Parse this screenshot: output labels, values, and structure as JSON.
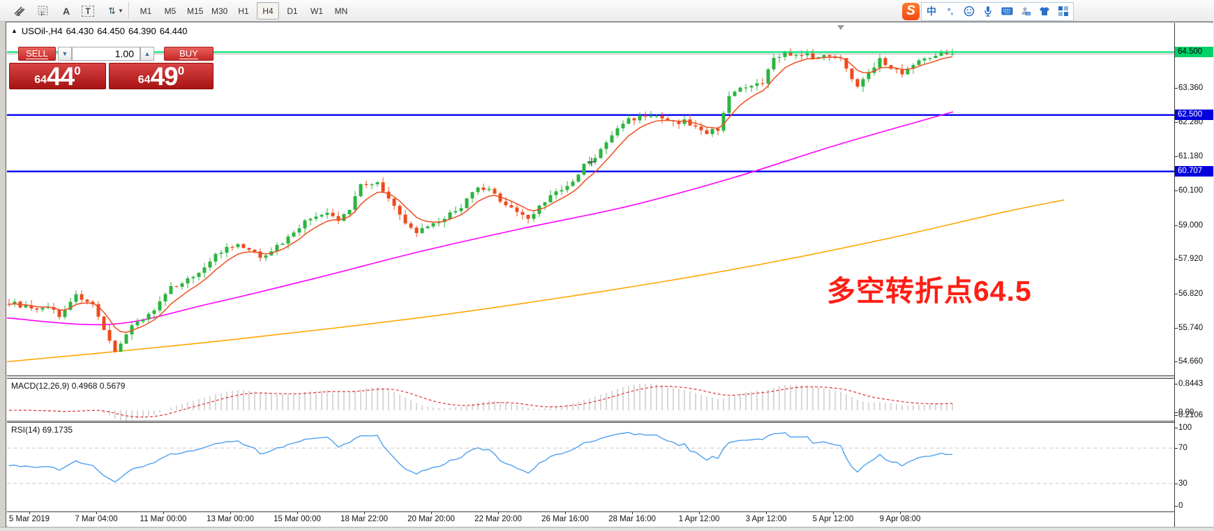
{
  "toolbar": {
    "tools": [
      {
        "name": "crayon-icon",
        "glyph": "E"
      },
      {
        "name": "grid-icon",
        "glyph": "F"
      },
      {
        "name": "text-label-icon",
        "glyph": "A"
      },
      {
        "name": "text-box-icon",
        "glyph": "T"
      },
      {
        "name": "arrange-icon",
        "glyph": "⇅"
      }
    ],
    "timeframes": [
      "M1",
      "M5",
      "M15",
      "M30",
      "H1",
      "H4",
      "D1",
      "W1",
      "MN"
    ],
    "active_timeframe": "H4",
    "ime": {
      "logo": "S",
      "chinese_mode": "中",
      "punctuation": "°,",
      "icons": [
        "emoji-icon",
        "microphone-icon",
        "keyboard-icon",
        "account-icon",
        "skin-icon",
        "toolbox-icon"
      ]
    }
  },
  "chart": {
    "title": {
      "expander": "▲",
      "symbol": "USOil-,H4",
      "open": "64.430",
      "high": "64.450",
      "low": "64.390",
      "close": "64.440"
    },
    "trade_panel": {
      "sell_label": "SELL",
      "buy_label": "BUY",
      "volume": "1.00",
      "spin_down": "▼",
      "spin_up": "▲",
      "sell_price": {
        "prefix": "64",
        "big": "44",
        "sup": "0"
      },
      "buy_price": {
        "prefix": "64",
        "big": "49",
        "sup": "0"
      }
    },
    "annotation": {
      "text": "多空转折点64.5",
      "color": "#ff1e14"
    }
  },
  "macd": {
    "label": "MACD(12,26,9)",
    "values": "0.4968 0.5679",
    "axis": [
      "0.8443",
      "0.00",
      "0.2106"
    ]
  },
  "rsi": {
    "label": "RSI(14)",
    "value": "69.1735"
  },
  "time_axis": [
    "5 Mar 2019",
    "7 Mar 04:00",
    "11 Mar 00:00",
    "13 Mar 00:00",
    "15 Mar 00:00",
    "18 Mar 22:00",
    "20 Mar 20:00",
    "22 Mar 20:00",
    "26 Mar 16:00",
    "28 Mar 16:00",
    "1 Apr 12:00",
    "3 Apr 12:00",
    "5 Apr 12:00",
    "9 Apr 08:00"
  ],
  "chart_data": {
    "type": "candlestick",
    "symbol": "USOil-",
    "timeframe": "H4",
    "ohlc_current": {
      "open": 64.43,
      "high": 64.45,
      "low": 64.39,
      "close": 64.44
    },
    "bar_count": 170,
    "bar_spacing_px": 8,
    "noise_amp": 0.14,
    "wick_amp": 0.17,
    "colors": {
      "up": "#2db440",
      "down": "#ef4a1c",
      "ma_fast": "#ee4d20",
      "ma_mid": "#ff00ff",
      "ma_slow": "#ffa500",
      "macd_hist": "#c4c4c4",
      "macd_signal": "#e23030",
      "rsi_line": "#4da0f0",
      "level_green": "#00e276",
      "level_blue": "#0202f2",
      "price_line": "#aaaaaa"
    },
    "price_axis_ticks": [
      63.36,
      62.28,
      61.18,
      60.1,
      59.0,
      57.92,
      56.82,
      55.74,
      54.66
    ],
    "hlines": [
      {
        "price": 64.5,
        "label": "64.500",
        "color": "#00e276",
        "badge_bg": "#00d26a",
        "badge_fg": "#000000"
      },
      {
        "price": 62.5,
        "label": "62.500",
        "color": "#0202f2",
        "badge_bg": "#0000dd",
        "badge_fg": "#ffffff"
      },
      {
        "price": 60.707,
        "label": "60.707",
        "color": "#0202f2",
        "badge_bg": "#0000dd",
        "badge_fg": "#ffffff"
      }
    ],
    "current_price": 64.44,
    "close_anchors": [
      [
        0,
        56.55
      ],
      [
        3,
        56.4
      ],
      [
        5,
        56.25
      ],
      [
        7,
        56.45
      ],
      [
        9,
        56.1
      ],
      [
        11,
        56.6
      ],
      [
        12,
        56.75
      ],
      [
        14,
        56.6
      ],
      [
        15,
        56.45
      ],
      [
        17,
        55.6
      ],
      [
        19,
        54.95
      ],
      [
        20,
        55.3
      ],
      [
        22,
        55.8
      ],
      [
        24,
        56.05
      ],
      [
        26,
        56.3
      ],
      [
        29,
        57.0
      ],
      [
        31,
        57.2
      ],
      [
        33,
        57.35
      ],
      [
        35,
        57.7
      ],
      [
        37,
        58.05
      ],
      [
        39,
        58.25
      ],
      [
        41,
        58.35
      ],
      [
        43,
        58.2
      ],
      [
        45,
        58.0
      ],
      [
        47,
        58.2
      ],
      [
        49,
        58.45
      ],
      [
        51,
        58.8
      ],
      [
        53,
        59.1
      ],
      [
        55,
        59.3
      ],
      [
        57,
        59.35
      ],
      [
        59,
        59.15
      ],
      [
        61,
        59.5
      ],
      [
        63,
        60.35
      ],
      [
        65,
        60.3
      ],
      [
        66,
        60.35
      ],
      [
        68,
        59.9
      ],
      [
        70,
        59.3
      ],
      [
        71,
        59.0
      ],
      [
        73,
        58.8
      ],
      [
        75,
        58.9
      ],
      [
        77,
        59.1
      ],
      [
        79,
        59.35
      ],
      [
        81,
        59.6
      ],
      [
        83,
        60.0
      ],
      [
        84,
        60.15
      ],
      [
        86,
        60.1
      ],
      [
        88,
        59.8
      ],
      [
        90,
        59.55
      ],
      [
        92,
        59.3
      ],
      [
        93,
        59.2
      ],
      [
        95,
        59.6
      ],
      [
        97,
        59.95
      ],
      [
        99,
        60.1
      ],
      [
        101,
        60.35
      ],
      [
        103,
        60.9
      ],
      [
        105,
        61.15
      ],
      [
        107,
        61.6
      ],
      [
        109,
        62.1
      ],
      [
        111,
        62.35
      ],
      [
        113,
        62.45
      ],
      [
        115,
        62.5
      ],
      [
        117,
        62.35
      ],
      [
        119,
        62.25
      ],
      [
        121,
        62.3
      ],
      [
        123,
        62.1
      ],
      [
        125,
        61.95
      ],
      [
        127,
        62.05
      ],
      [
        129,
        63.15
      ],
      [
        131,
        63.3
      ],
      [
        133,
        63.4
      ],
      [
        135,
        63.5
      ],
      [
        136,
        63.9
      ],
      [
        137,
        64.3
      ],
      [
        139,
        64.5
      ],
      [
        141,
        64.35
      ],
      [
        143,
        64.4
      ],
      [
        145,
        64.3
      ],
      [
        147,
        64.4
      ],
      [
        149,
        64.35
      ],
      [
        151,
        63.6
      ],
      [
        152,
        63.45
      ],
      [
        154,
        63.9
      ],
      [
        156,
        64.25
      ],
      [
        158,
        64.0
      ],
      [
        160,
        63.85
      ],
      [
        162,
        64.1
      ],
      [
        164,
        64.3
      ],
      [
        166,
        64.45
      ],
      [
        168,
        64.4
      ],
      [
        169,
        64.44
      ]
    ],
    "overlays": {
      "ma_fast": {
        "type": "ema",
        "period": 7
      },
      "ma_mid": {
        "anchors": [
          [
            10,
            56.05
          ],
          [
            160,
            55.85
          ],
          [
            300,
            56.5
          ],
          [
            450,
            57.3
          ],
          [
            600,
            58.15
          ],
          [
            750,
            58.9
          ],
          [
            900,
            59.6
          ],
          [
            1050,
            60.5
          ],
          [
            1200,
            61.55
          ],
          [
            1366,
            62.6
          ]
        ]
      },
      "ma_slow": {
        "anchors": [
          [
            10,
            54.66
          ],
          [
            160,
            54.97
          ],
          [
            320,
            55.33
          ],
          [
            480,
            55.73
          ],
          [
            640,
            56.17
          ],
          [
            800,
            56.68
          ],
          [
            960,
            57.24
          ],
          [
            1120,
            57.88
          ],
          [
            1280,
            58.61
          ],
          [
            1440,
            59.42
          ],
          [
            1525,
            59.8
          ]
        ]
      }
    },
    "indicators": {
      "macd": {
        "fast": 12,
        "slow": 26,
        "signal": 9,
        "current_main": 0.4968,
        "current_signal": 0.5679,
        "display_max": 0.8443
      },
      "rsi": {
        "period": 14,
        "current": 69.1735,
        "levels": [
          100,
          70,
          30,
          0
        ]
      }
    }
  }
}
